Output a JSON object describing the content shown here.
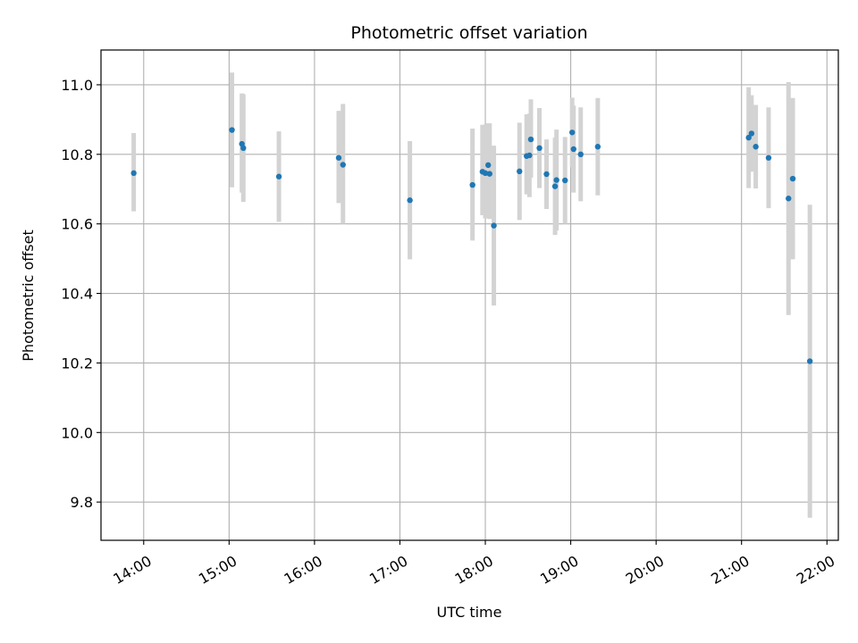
{
  "chart_data": {
    "type": "scatter",
    "title": "Photometric offset variation",
    "xlabel": "UTC time",
    "ylabel": "Photometric offset",
    "x_ticks": [
      "14:00",
      "15:00",
      "16:00",
      "17:00",
      "18:00",
      "19:00",
      "20:00",
      "21:00",
      "22:00"
    ],
    "y_ticks": [
      "9.8",
      "10.0",
      "10.2",
      "10.4",
      "10.6",
      "10.8",
      "11.0"
    ],
    "xlim": [
      "13:30",
      "22:08"
    ],
    "ylim": [
      9.69,
      11.1
    ],
    "grid": true,
    "colors": {
      "point": "#1f77b4",
      "errorbar": "#d3d3d3",
      "grid": "#b0b0b0"
    },
    "points": [
      {
        "x": "13:53",
        "y": 10.746,
        "yerr_low": 0.11,
        "yerr_high": 0.115
      },
      {
        "x": "15:02",
        "y": 10.87,
        "yerr_low": 0.165,
        "yerr_high": 0.165
      },
      {
        "x": "15:09",
        "y": 10.83,
        "yerr_low": 0.14,
        "yerr_high": 0.145
      },
      {
        "x": "15:10",
        "y": 10.818,
        "yerr_low": 0.155,
        "yerr_high": 0.155
      },
      {
        "x": "15:35",
        "y": 10.736,
        "yerr_low": 0.13,
        "yerr_high": 0.13
      },
      {
        "x": "16:17",
        "y": 10.79,
        "yerr_low": 0.13,
        "yerr_high": 0.135
      },
      {
        "x": "16:20",
        "y": 10.77,
        "yerr_low": 0.17,
        "yerr_high": 0.175
      },
      {
        "x": "17:07",
        "y": 10.668,
        "yerr_low": 0.17,
        "yerr_high": 0.17
      },
      {
        "x": "17:51",
        "y": 10.712,
        "yerr_low": 0.16,
        "yerr_high": 0.162
      },
      {
        "x": "17:58",
        "y": 10.75,
        "yerr_low": 0.125,
        "yerr_high": 0.135
      },
      {
        "x": "18:00",
        "y": 10.746,
        "yerr_low": 0.13,
        "yerr_high": 0.14
      },
      {
        "x": "18:02",
        "y": 10.769,
        "yerr_low": 0.1,
        "yerr_high": 0.12
      },
      {
        "x": "18:03",
        "y": 10.744,
        "yerr_low": 0.13,
        "yerr_high": 0.145
      },
      {
        "x": "18:06",
        "y": 10.595,
        "yerr_low": 0.23,
        "yerr_high": 0.23
      },
      {
        "x": "18:24",
        "y": 10.751,
        "yerr_low": 0.14,
        "yerr_high": 0.14
      },
      {
        "x": "18:29",
        "y": 10.795,
        "yerr_low": 0.11,
        "yerr_high": 0.12
      },
      {
        "x": "18:31",
        "y": 10.797,
        "yerr_low": 0.12,
        "yerr_high": 0.12
      },
      {
        "x": "18:32",
        "y": 10.843,
        "yerr_low": 0.11,
        "yerr_high": 0.115
      },
      {
        "x": "18:38",
        "y": 10.818,
        "yerr_low": 0.115,
        "yerr_high": 0.115
      },
      {
        "x": "18:43",
        "y": 10.743,
        "yerr_low": 0.1,
        "yerr_high": 0.1
      },
      {
        "x": "18:49",
        "y": 10.708,
        "yerr_low": 0.14,
        "yerr_high": 0.14
      },
      {
        "x": "18:50",
        "y": 10.726,
        "yerr_low": 0.145,
        "yerr_high": 0.145
      },
      {
        "x": "18:56",
        "y": 10.725,
        "yerr_low": 0.125,
        "yerr_high": 0.125
      },
      {
        "x": "19:01",
        "y": 10.863,
        "yerr_low": 0.1,
        "yerr_high": 0.1
      },
      {
        "x": "19:02",
        "y": 10.815,
        "yerr_low": 0.125,
        "yerr_high": 0.125
      },
      {
        "x": "19:07",
        "y": 10.8,
        "yerr_low": 0.135,
        "yerr_high": 0.135
      },
      {
        "x": "19:19",
        "y": 10.822,
        "yerr_low": 0.14,
        "yerr_high": 0.14
      },
      {
        "x": "21:05",
        "y": 10.848,
        "yerr_low": 0.145,
        "yerr_high": 0.145
      },
      {
        "x": "21:07",
        "y": 10.86,
        "yerr_low": 0.11,
        "yerr_high": 0.11
      },
      {
        "x": "21:10",
        "y": 10.822,
        "yerr_low": 0.12,
        "yerr_high": 0.12
      },
      {
        "x": "21:19",
        "y": 10.79,
        "yerr_low": 0.145,
        "yerr_high": 0.145
      },
      {
        "x": "21:33",
        "y": 10.673,
        "yerr_low": 0.335,
        "yerr_high": 0.335
      },
      {
        "x": "21:36",
        "y": 10.73,
        "yerr_low": 0.232,
        "yerr_high": 0.232
      },
      {
        "x": "21:48",
        "y": 10.205,
        "yerr_low": 0.45,
        "yerr_high": 0.45
      }
    ]
  }
}
